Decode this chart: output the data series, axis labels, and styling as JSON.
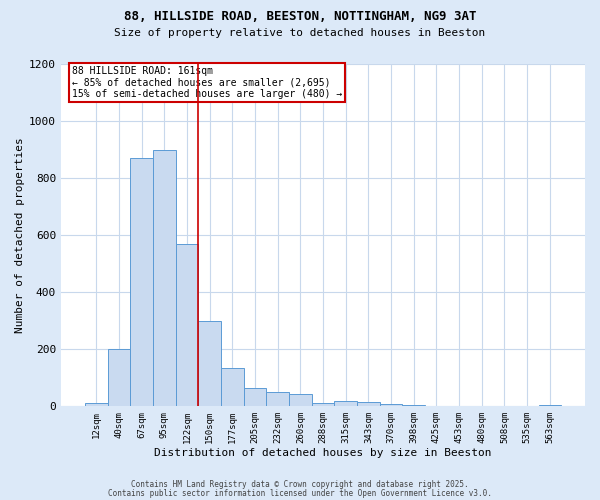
{
  "title_line1": "88, HILLSIDE ROAD, BEESTON, NOTTINGHAM, NG9 3AT",
  "title_line2": "Size of property relative to detached houses in Beeston",
  "xlabel": "Distribution of detached houses by size in Beeston",
  "ylabel": "Number of detached properties",
  "categories": [
    "12sqm",
    "40sqm",
    "67sqm",
    "95sqm",
    "122sqm",
    "150sqm",
    "177sqm",
    "205sqm",
    "232sqm",
    "260sqm",
    "288sqm",
    "315sqm",
    "343sqm",
    "370sqm",
    "398sqm",
    "425sqm",
    "453sqm",
    "480sqm",
    "508sqm",
    "535sqm",
    "563sqm"
  ],
  "values": [
    10,
    200,
    870,
    900,
    570,
    300,
    135,
    65,
    50,
    42,
    12,
    18,
    15,
    8,
    3,
    2,
    1,
    1,
    2,
    1,
    5
  ],
  "bar_color": "#c9daf0",
  "bar_edge_color": "#5b9bd5",
  "ylim": [
    0,
    1200
  ],
  "yticks": [
    0,
    200,
    400,
    600,
    800,
    1000,
    1200
  ],
  "vline_x_idx": 5,
  "vline_color": "#cc0000",
  "annotation_text": "88 HILLSIDE ROAD: 161sqm\n← 85% of detached houses are smaller (2,695)\n15% of semi-detached houses are larger (480) →",
  "annotation_box_color": "#cc0000",
  "footer_line1": "Contains HM Land Registry data © Crown copyright and database right 2025.",
  "footer_line2": "Contains public sector information licensed under the Open Government Licence v3.0.",
  "background_color": "#dce9f8",
  "plot_bg_color": "#ffffff",
  "grid_color": "#c8d8ec"
}
